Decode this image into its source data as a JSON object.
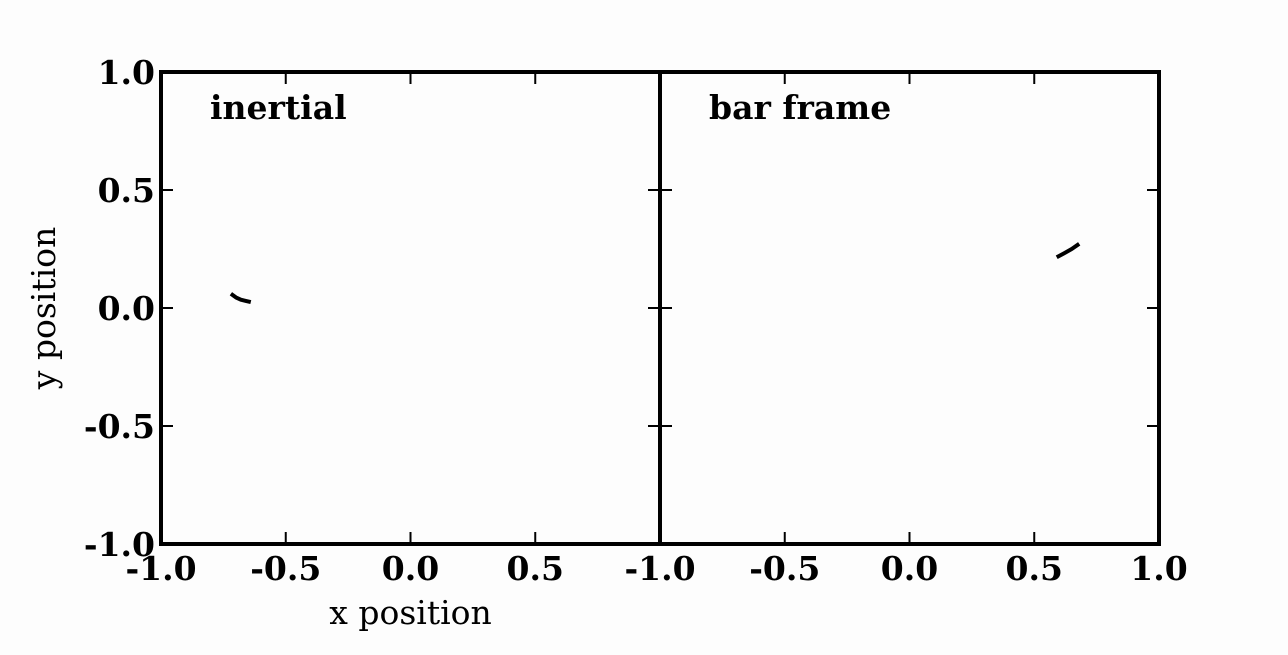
{
  "chart_data": [
    {
      "type": "line",
      "title": "inertial",
      "xlabel": "x position",
      "ylabel": "y position",
      "xlim": [
        -1.0,
        1.0
      ],
      "ylim": [
        -1.0,
        1.0
      ],
      "xticks": [
        "-1.0",
        "-0.5",
        "0.0",
        "0.5"
      ],
      "yticks": [
        "1.0",
        "0.5",
        "0.0",
        "-0.5",
        "-1.0"
      ],
      "grid": false,
      "series": [
        {
          "x": [
            -0.72,
            -0.7,
            -0.68,
            -0.66,
            -0.64
          ],
          "y": [
            0.06,
            0.045,
            0.035,
            0.03,
            0.025
          ]
        }
      ]
    },
    {
      "type": "line",
      "title": "bar frame",
      "xlabel": "",
      "ylabel": "",
      "xlim": [
        -1.0,
        1.0
      ],
      "ylim": [
        -1.0,
        1.0
      ],
      "xticks": [
        "-1.0",
        "-0.5",
        "0.0",
        "0.5",
        "1.0"
      ],
      "yticks": [],
      "grid": false,
      "series": [
        {
          "x": [
            0.59,
            0.62,
            0.65,
            0.68
          ],
          "y": [
            0.215,
            0.232,
            0.25,
            0.272
          ]
        }
      ]
    }
  ],
  "colors": {
    "line": "#000000",
    "axes": "#000000"
  }
}
